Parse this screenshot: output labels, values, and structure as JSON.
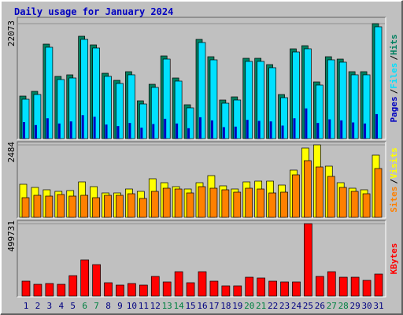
{
  "title": "Daily usage for January 2024",
  "legend_separator": "/",
  "chart_data": [
    {
      "type": "bar",
      "ylim": [
        0,
        22073
      ],
      "yticks": [
        22073
      ],
      "series": [
        {
          "name": "Hits",
          "color": "#008060",
          "values": [
            8164,
            9071,
            18142,
            11944,
            12246,
            19654,
            17991,
            12548,
            11188,
            12851,
            7257,
            10432,
            15874,
            11641,
            6501,
            19049,
            15723,
            7408,
            8013,
            15421,
            15421,
            14211,
            8466,
            17235,
            17840,
            10885,
            15723,
            15270,
            12851,
            12851,
            22073
          ]
        },
        {
          "name": "Files",
          "color": "#00e0ff",
          "values": [
            7560,
            8470,
            17540,
            11340,
            11640,
            19050,
            17390,
            11950,
            10590,
            12250,
            6650,
            9830,
            15270,
            11040,
            5900,
            18450,
            15120,
            6800,
            7410,
            14820,
            14820,
            13610,
            7860,
            16630,
            17240,
            10280,
            15120,
            14670,
            12250,
            12250,
            21470
          ]
        },
        {
          "name": "Pages",
          "color": "#0000c0",
          "values": [
            3175,
            2600,
            3900,
            2900,
            3300,
            4500,
            4200,
            2700,
            2400,
            3000,
            2100,
            2800,
            3800,
            2900,
            2000,
            4100,
            3500,
            2200,
            2300,
            3600,
            3400,
            3300,
            2500,
            3900,
            5800,
            3000,
            3700,
            3500,
            3100,
            2900,
            4700
          ]
        }
      ]
    },
    {
      "type": "bar",
      "ylim": [
        0,
        2484
      ],
      "yticks": [
        2484
      ],
      "series": [
        {
          "name": "Visits",
          "color": "#ffff00",
          "values": [
            1134,
            1026,
            945,
            891,
            918,
            1215,
            1053,
            837,
            837,
            972,
            891,
            1323,
            1188,
            1053,
            972,
            1188,
            1431,
            1080,
            972,
            1215,
            1242,
            1242,
            1107,
            1620,
            2376,
            2484,
            1755,
            1188,
            999,
            945,
            2133
          ]
        },
        {
          "name": "Sites",
          "color": "#ff8000",
          "values": [
            675,
            756,
            729,
            783,
            729,
            756,
            675,
            756,
            756,
            810,
            648,
            891,
            999,
            972,
            837,
            1053,
            999,
            945,
            864,
            999,
            972,
            837,
            864,
            1458,
            1944,
            1728,
            1404,
            1026,
            891,
            810,
            1674
          ]
        }
      ]
    },
    {
      "type": "bar",
      "ylim": [
        0,
        499731
      ],
      "yticks": [
        499731
      ],
      "categories": [
        "1",
        "2",
        "3",
        "4",
        "5",
        "6",
        "7",
        "8",
        "9",
        "10",
        "11",
        "12",
        "13",
        "14",
        "15",
        "16",
        "17",
        "18",
        "19",
        "20",
        "21",
        "22",
        "23",
        "24",
        "25",
        "26",
        "27",
        "28",
        "29",
        "30",
        "31"
      ],
      "category_colors": [
        "#000080",
        "#000080",
        "#000080",
        "#000080",
        "#000080",
        "#008040",
        "#008040",
        "#000080",
        "#000080",
        "#000080",
        "#000080",
        "#000080",
        "#008040",
        "#008040",
        "#000080",
        "#000080",
        "#000080",
        "#000080",
        "#000080",
        "#008040",
        "#008040",
        "#000080",
        "#000080",
        "#000080",
        "#000080",
        "#000080",
        "#008040",
        "#008040",
        "#000080",
        "#000080",
        "#000080"
      ],
      "series": [
        {
          "name": "KBytes",
          "color": "#ff0000",
          "values": [
            103208,
            81480,
            86912,
            81480,
            141232,
            249872,
            217280,
            92344,
            76048,
            86912,
            76048,
            135800,
            97776,
            168392,
            92344,
            168392,
            103208,
            70616,
            70616,
            130368,
            124936,
            103208,
            97776,
            97776,
            499731,
            135800,
            168392,
            130368,
            130368,
            108640,
            152096
          ]
        }
      ]
    }
  ]
}
